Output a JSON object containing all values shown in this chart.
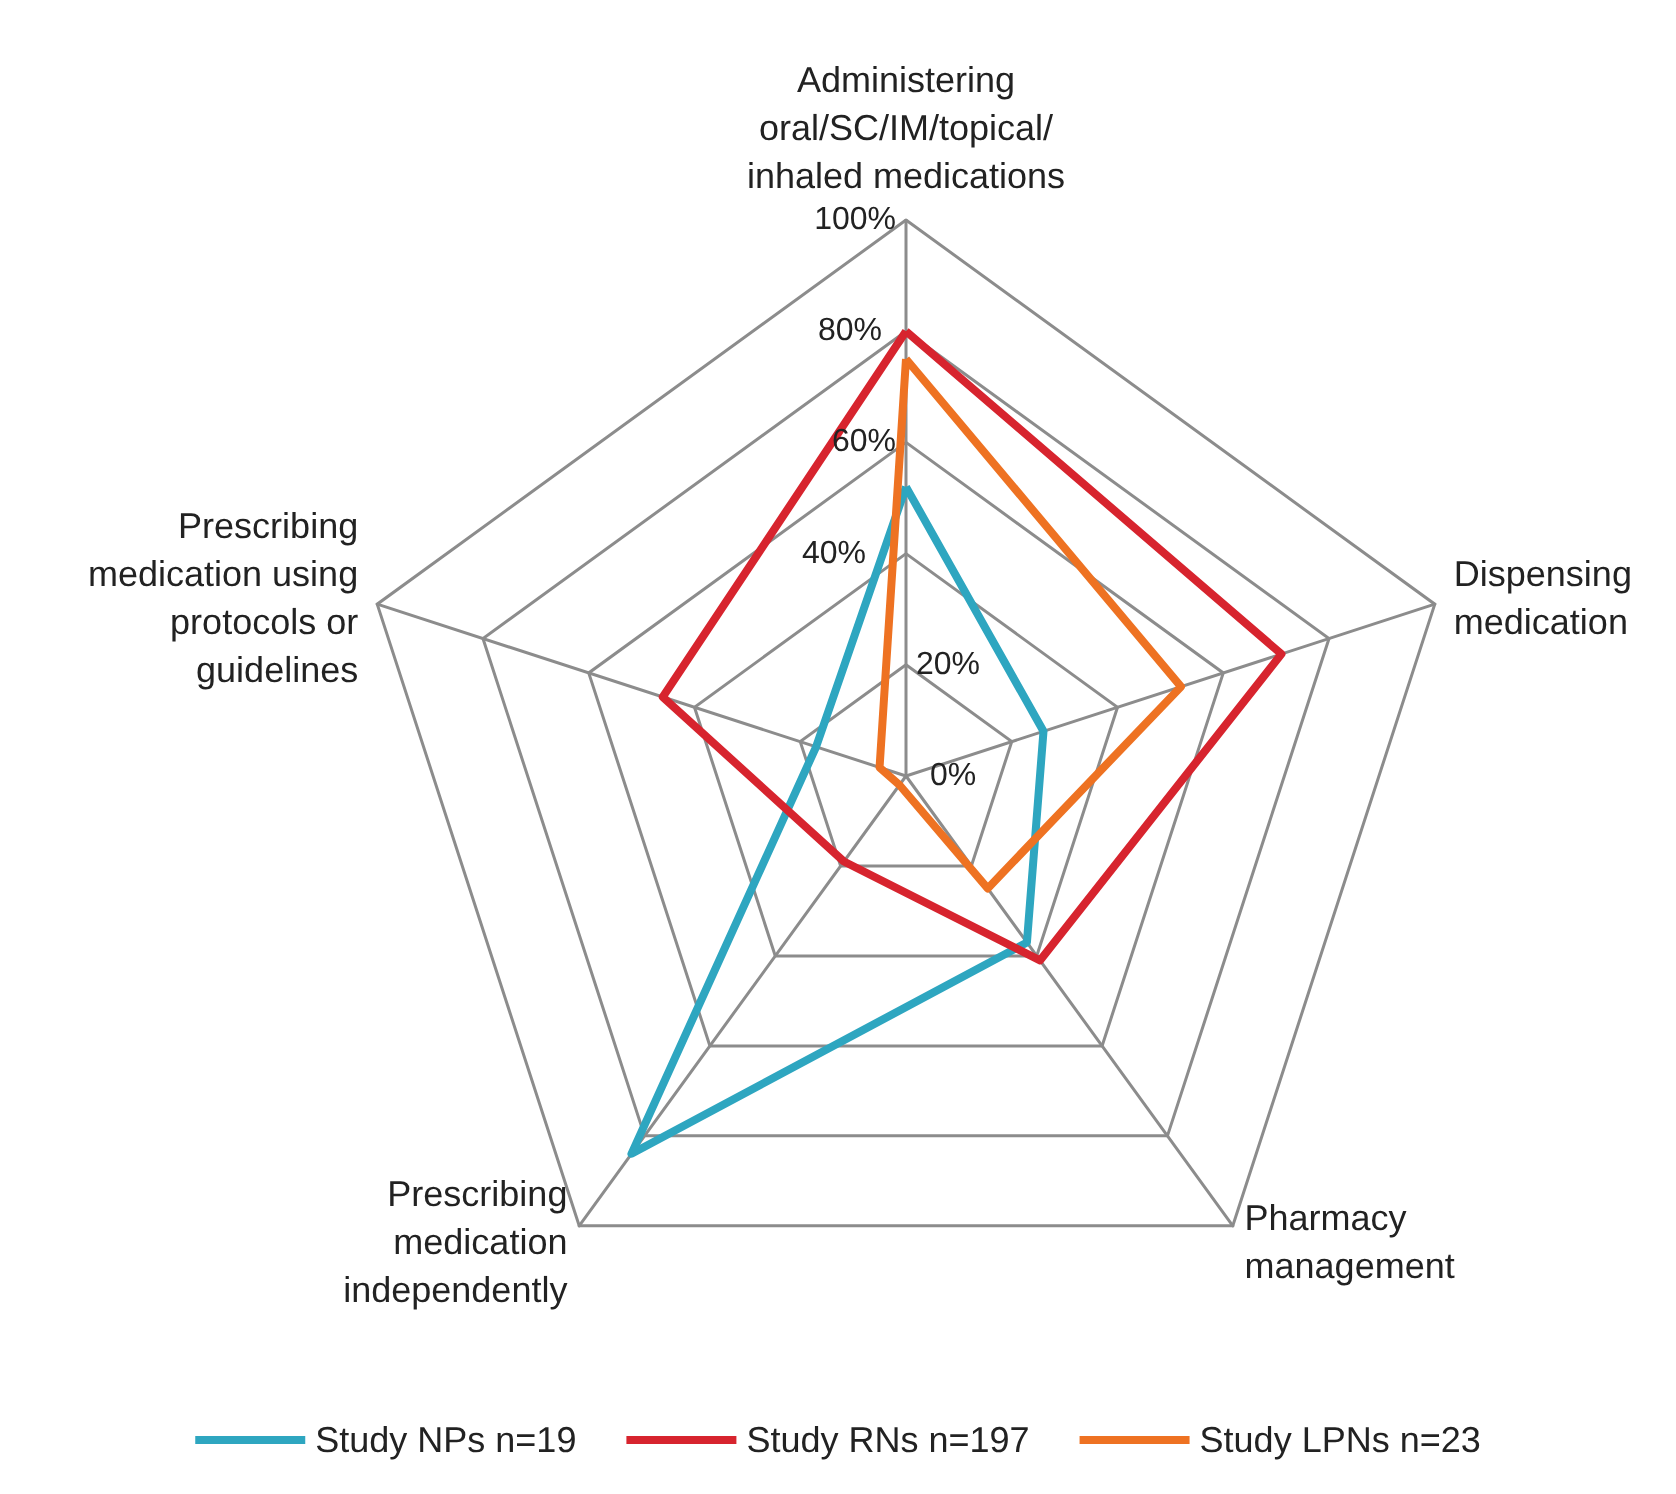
{
  "chart_data": {
    "type": "radar",
    "categories": [
      "Administering\noral/SC/IM/topical/\ninhaled medications",
      "Dispensing\nmedication",
      "Pharmacy\nmanagement",
      "Prescribing\nmedication\nindependently",
      "Prescribing\nmedication using\nprotocols or\nguidelines"
    ],
    "series": [
      {
        "name": "Study NPs n=19",
        "color": "#2ea6c0",
        "values": [
          52,
          26,
          37,
          84,
          17
        ]
      },
      {
        "name": "Study RNs n=197",
        "color": "#d7242e",
        "values": [
          80,
          71,
          41,
          19,
          46
        ]
      },
      {
        "name": "Study LPNs n=23",
        "color": "#ee7222",
        "values": [
          75,
          52,
          25,
          2,
          5
        ]
      }
    ],
    "ylim": [
      0,
      100
    ],
    "yticks": [
      {
        "value": 0,
        "label": "0%"
      },
      {
        "value": 20,
        "label": "20%"
      },
      {
        "value": 40,
        "label": "40%"
      },
      {
        "value": 60,
        "label": "60%"
      },
      {
        "value": 80,
        "label": "80%"
      },
      {
        "value": 100,
        "label": "100%"
      }
    ],
    "legend": "bottom",
    "marker": "none",
    "line_style": "solid"
  }
}
